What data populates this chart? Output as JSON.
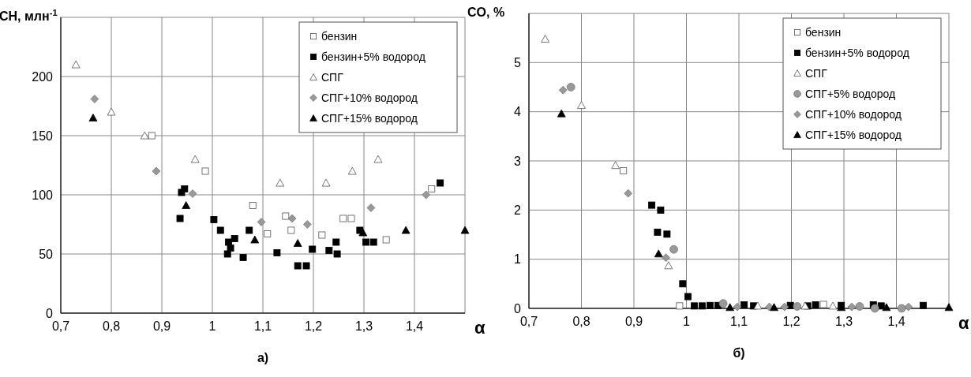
{
  "chart_data": [
    {
      "type": "scatter",
      "title": "а)",
      "xlabel": "α",
      "ylabel": "CH, млн$^{-1}$",
      "xlim": [
        0.7,
        1.5
      ],
      "xticks": [
        {
          "value": 0.7,
          "label": "0,7"
        },
        {
          "value": 0.8,
          "label": "0,8"
        },
        {
          "value": 0.9,
          "label": "0,9"
        },
        {
          "value": 1,
          "label": "1"
        },
        {
          "value": 1.1,
          "label": "1,1"
        },
        {
          "value": 1.2,
          "label": "1,2"
        },
        {
          "value": 1.3,
          "label": "1,3"
        },
        {
          "value": 1.4,
          "label": "1,4"
        }
      ],
      "ylim": [
        0,
        250
      ],
      "yticks": [
        0,
        50,
        100,
        150,
        200
      ],
      "grid": true,
      "legend": "top right",
      "series": [
        {
          "name": "бензин",
          "marker": "square",
          "color": "#ffffff",
          "x": [
            0.88,
            0.986,
            1.08,
            1.109,
            1.145,
            1.156,
            1.217,
            1.259,
            1.275,
            1.344,
            1.434
          ],
          "values": [
            150,
            120,
            91,
            67,
            82,
            70,
            66,
            80,
            80,
            62,
            105
          ]
        },
        {
          "name": "бензин+5% водород",
          "marker": "square",
          "color": "#000000",
          "x": [
            0.936,
            0.939,
            0.945,
            1.003,
            1.016,
            1.03,
            1.032,
            1.036,
            1.044,
            1.061,
            1.073,
            1.128,
            1.169,
            1.186,
            1.198,
            1.231,
            1.245,
            1.247,
            1.292,
            1.304,
            1.319,
            1.451
          ],
          "values": [
            80,
            102,
            105,
            79,
            70,
            50,
            60,
            55,
            63,
            47,
            70,
            51,
            40,
            40,
            54,
            53,
            60,
            50,
            70,
            60,
            60,
            110
          ]
        },
        {
          "name": "СПГ",
          "marker": "triangle",
          "color": "#ffffff",
          "x": [
            0.73,
            0.8,
            0.866,
            0.966,
            1.134,
            1.225,
            1.277,
            1.328
          ],
          "values": [
            210,
            170,
            150,
            130,
            110,
            110,
            120,
            130
          ]
        },
        {
          "name": "СПГ+10% водород",
          "marker": "diamond",
          "color": "#999999",
          "x": [
            0.767,
            0.889,
            0.961,
            1.097,
            1.158,
            1.188,
            1.314,
            1.423
          ],
          "values": [
            181,
            120,
            101,
            77,
            80,
            75,
            89,
            100
          ]
        },
        {
          "name": "СПГ+15% водород",
          "marker": "triangle",
          "color": "#000000",
          "x": [
            0.764,
            0.948,
            1.084,
            1.169,
            1.298,
            1.383,
            1.5
          ],
          "values": [
            165,
            91,
            62,
            59,
            68,
            70,
            70
          ]
        }
      ]
    },
    {
      "type": "scatter",
      "title": "б)",
      "xlabel": "α",
      "ylabel": "CO, %",
      "xlim": [
        0.7,
        1.5
      ],
      "xticks": [
        {
          "value": 0.7,
          "label": "0,7"
        },
        {
          "value": 0.8,
          "label": "0,8"
        },
        {
          "value": 0.9,
          "label": "0,9"
        },
        {
          "value": 1,
          "label": "1"
        },
        {
          "value": 1.1,
          "label": "1,1"
        },
        {
          "value": 1.2,
          "label": "1,2"
        },
        {
          "value": 1.3,
          "label": "1,3"
        },
        {
          "value": 1.4,
          "label": "1,4"
        }
      ],
      "ylim": [
        0,
        6
      ],
      "yticks": [
        0,
        1,
        2,
        3,
        4,
        5
      ],
      "grid": true,
      "legend": "top right",
      "series": [
        {
          "name": "бензин",
          "marker": "square",
          "color": "#ffffff",
          "x": [
            0.88,
            0.987,
            1.261
          ],
          "values": [
            2.8,
            0.05,
            0.08
          ]
        },
        {
          "name": "бензин+5% водород",
          "marker": "square",
          "color": "#000000",
          "x": [
            0.934,
            0.945,
            0.951,
            0.963,
            0.993,
            1.003,
            1.015,
            1.03,
            1.045,
            1.06,
            1.11,
            1.128,
            1.198,
            1.231,
            1.246,
            1.295,
            1.356,
            1.371,
            1.451
          ],
          "values": [
            2.1,
            1.55,
            2.0,
            1.51,
            0.5,
            0.24,
            0.05,
            0.05,
            0.06,
            0.06,
            0.07,
            0.05,
            0.06,
            0.05,
            0.07,
            0.06,
            0.07,
            0.05,
            0.06
          ]
        },
        {
          "name": "СПГ",
          "marker": "triangle",
          "color": "#ffffff",
          "x": [
            0.731,
            0.8,
            0.865,
            0.966,
            1.136,
            1.226,
            1.279
          ],
          "values": [
            5.48,
            4.13,
            2.91,
            0.87,
            0.05,
            0.05,
            0.05
          ]
        },
        {
          "name": "СПГ+5% водород",
          "marker": "circle",
          "color": "#999999",
          "x": [
            0.78,
            0.976,
            1.07,
            1.211,
            1.33,
            1.359,
            1.41
          ],
          "values": [
            4.5,
            1.2,
            0.1,
            0.04,
            0.04,
            0,
            0
          ]
        },
        {
          "name": "СПГ+10% водород",
          "marker": "diamond",
          "color": "#999999",
          "x": [
            0.765,
            0.889,
            0.961,
            1.097,
            1.158,
            1.187,
            1.315,
            1.423
          ],
          "values": [
            4.44,
            2.34,
            1.03,
            0.03,
            0.03,
            0.03,
            0.03,
            0.03
          ]
        },
        {
          "name": "СПГ+15% водород",
          "marker": "triangle",
          "color": "#000000",
          "x": [
            0.762,
            0.947,
            1.083,
            1.167,
            1.295,
            1.381,
            1.5
          ],
          "values": [
            3.96,
            1.11,
            0.02,
            0.02,
            0.02,
            0.02,
            0.02
          ]
        }
      ]
    }
  ]
}
